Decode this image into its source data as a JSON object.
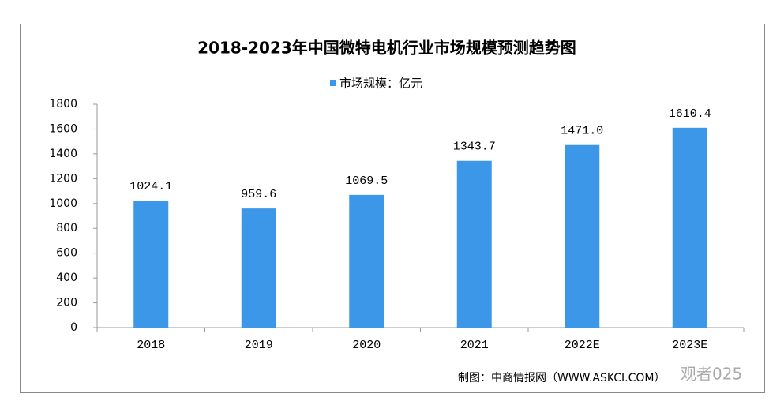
{
  "chart_data": {
    "type": "bar",
    "title": "2018-2023年中国微特电机行业市场规模预测趋势图",
    "series": [
      {
        "name": "市场规模：亿元",
        "color": "#3d97e8",
        "values": [
          1024.1,
          959.6,
          1069.5,
          1343.7,
          1471.0,
          1610.4
        ],
        "value_labels": [
          "1024.1",
          "959.6",
          "1069.5",
          "1343.7",
          "1471.0",
          "1610.4"
        ]
      }
    ],
    "categories": [
      "2018",
      "2019",
      "2020",
      "2021",
      "2022E",
      "2023E"
    ],
    "ylim": [
      0,
      1800
    ],
    "yticks": [
      0,
      200,
      400,
      600,
      800,
      1000,
      1200,
      1400,
      1600,
      1800
    ],
    "source": "制图：中商情报网（WWW.ASKCI.COM）",
    "watermark": "观者025"
  }
}
